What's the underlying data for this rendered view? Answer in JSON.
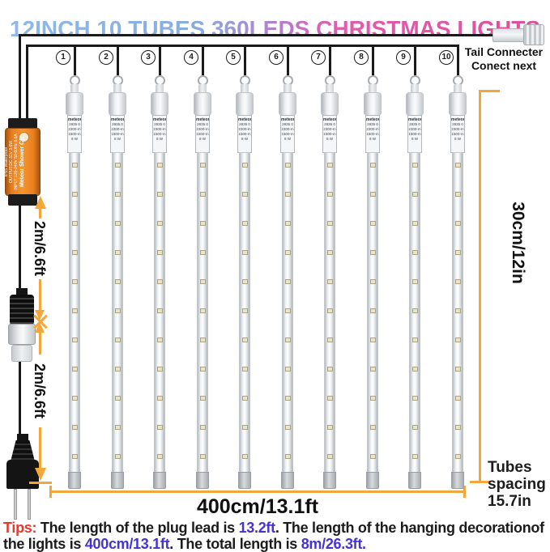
{
  "title": "12INCH 10 TUBES 360LEDS CHRISTMAS LIGHTS",
  "colors": {
    "title_blue": "#8BB4E6",
    "title_pink": "#E1509E",
    "measure_orange": "#F3A73B",
    "tips_red": "#E23A2E",
    "tips_highlight": "#4633CF"
  },
  "tail_connector": {
    "line1": "Tail Connecter",
    "line2": "Conect next"
  },
  "tubes": {
    "count": 10,
    "numbers": [
      "1",
      "2",
      "3",
      "4",
      "5",
      "6",
      "7",
      "8",
      "9",
      "10"
    ],
    "label_lines": [
      "meteor",
      "2835 0",
      "2300-m",
      "1500-m",
      "8 W"
    ],
    "leds_per_tube": 11
  },
  "adapter": {
    "lines": [
      "Meteor Shower CE",
      "INPUT:120-240V 50-60Hz 0.6A",
      "OUTPUT:DC 31V 3.6W",
      "IP65 Waterproof"
    ]
  },
  "measurements": {
    "lead_top": "2m/6.6ft",
    "lead_bottom": "2m/6.6ft",
    "tube_length": "30cm/12in",
    "total_width": "400cm/13.1ft",
    "tube_spacing": "Tubes\nspacing\n15.7in"
  },
  "tips": {
    "label": "Tips:",
    "seg1": " The length of the plug lead is ",
    "val1": "13.2ft",
    "seg2": ". The length of the hanging decorationof the lights is ",
    "val2": "400cm/13.1ft",
    "seg3": ". The total length is ",
    "val3": "8m/26.3ft."
  }
}
